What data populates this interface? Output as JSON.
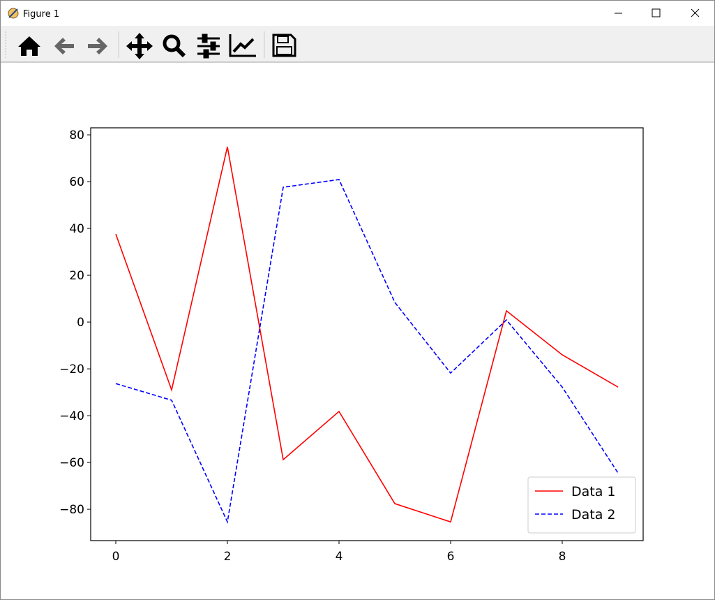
{
  "window": {
    "title": "Figure 1"
  },
  "chart_data": {
    "type": "line",
    "x": [
      0,
      1,
      2,
      3,
      4,
      5,
      6,
      7,
      8,
      9
    ],
    "series": [
      {
        "name": "Data 1",
        "color": "#ff0000",
        "dash": "solid",
        "values": [
          37.6,
          -29.0,
          74.9,
          -58.8,
          -38.2,
          -77.6,
          -85.4,
          4.8,
          -14.0,
          -27.8
        ]
      },
      {
        "name": "Data 2",
        "color": "#0000ff",
        "dash": "dashed",
        "values": [
          -26.3,
          -33.4,
          -85.4,
          57.6,
          60.9,
          8.4,
          -21.8,
          0.9,
          -27.8,
          -64.5
        ]
      }
    ],
    "xlim": [
      -0.45,
      9.45
    ],
    "ylim": [
      -93.4,
      83.0
    ],
    "xticks": [
      0,
      2,
      4,
      6,
      8
    ],
    "yticks": [
      {
        "value": -80,
        "label": "−80"
      },
      {
        "value": -60,
        "label": "−60"
      },
      {
        "value": -40,
        "label": "−40"
      },
      {
        "value": -20,
        "label": "−20"
      },
      0,
      20,
      40,
      60,
      80
    ],
    "grid": false,
    "legend": "lower right"
  }
}
